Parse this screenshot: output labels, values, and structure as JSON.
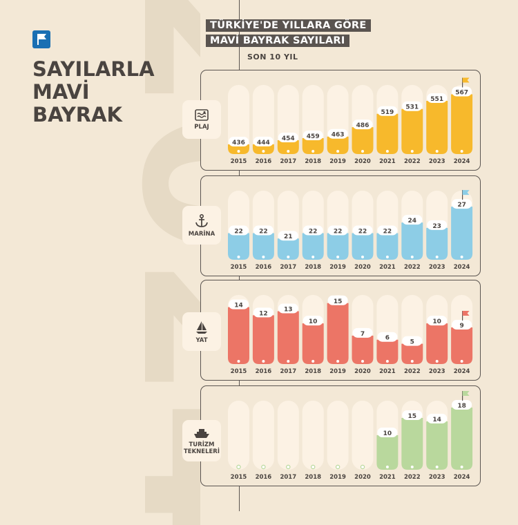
{
  "background_year": "2024",
  "header": {
    "title_lines": [
      "SAYILARLA",
      "MAVİ",
      "BAYRAK"
    ],
    "chart_title_lines": [
      "TÜRKİYE'DE YILLARA GÖRE",
      "MAVİ BAYRAK SAYILARI"
    ],
    "subtitle": "SON 10 YIL"
  },
  "colors": {
    "plaj": "#f7b92c",
    "marina": "#8dcde6",
    "yat": "#ec7566",
    "turizm": "#b9d89d",
    "track": "#fcf2e4",
    "accent_blue": "#1a6fb3"
  },
  "chart_data": [
    {
      "type": "bar",
      "category": "PLAJ",
      "icon": "beach-icon",
      "categories": [
        "2015",
        "2016",
        "2017",
        "2018",
        "2019",
        "2020",
        "2021",
        "2022",
        "2023",
        "2024"
      ],
      "values": [
        436,
        444,
        454,
        459,
        463,
        486,
        519,
        531,
        551,
        567
      ],
      "ylim": [
        420,
        590
      ],
      "color_key": "plaj",
      "flag_on": "2024"
    },
    {
      "type": "bar",
      "category": "MARİNA",
      "icon": "anchor-icon",
      "categories": [
        "2015",
        "2016",
        "2017",
        "2018",
        "2019",
        "2020",
        "2021",
        "2022",
        "2023",
        "2024"
      ],
      "values": [
        22,
        22,
        21,
        22,
        22,
        22,
        22,
        24,
        23,
        27
      ],
      "ylim": [
        17,
        30
      ],
      "color_key": "marina",
      "flag_on": "2024"
    },
    {
      "type": "bar",
      "category": "YAT",
      "icon": "sailboat-icon",
      "categories": [
        "2015",
        "2016",
        "2017",
        "2018",
        "2019",
        "2020",
        "2021",
        "2022",
        "2023",
        "2024"
      ],
      "values": [
        14,
        12,
        13,
        10,
        15,
        7,
        6,
        5,
        10,
        9
      ],
      "ylim": [
        0,
        17
      ],
      "color_key": "yat",
      "flag_on": "2024"
    },
    {
      "type": "bar",
      "category": "TURİZM TEKNELERİ",
      "category_lines": [
        "TURİZM",
        "TEKNELERİ"
      ],
      "icon": "boat-icon",
      "categories": [
        "2015",
        "2016",
        "2017",
        "2018",
        "2019",
        "2020",
        "2021",
        "2022",
        "2023",
        "2024"
      ],
      "values": [
        null,
        null,
        null,
        null,
        null,
        null,
        10,
        15,
        14,
        18
      ],
      "ylim": [
        0,
        20
      ],
      "color_key": "turizm",
      "flag_on": "2024"
    }
  ]
}
